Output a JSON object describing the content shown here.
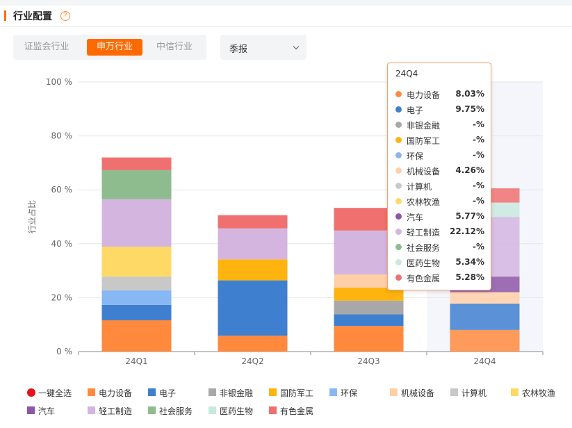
{
  "header": {
    "title": "行业配置",
    "help_icon": "question-circle-icon"
  },
  "tabs": [
    {
      "label": "证监会行业",
      "active": false
    },
    {
      "label": "申万行业",
      "active": true
    },
    {
      "label": "中信行业",
      "active": false
    }
  ],
  "period_select": {
    "value": "季报"
  },
  "colors": {
    "accent": "#ff6a00"
  },
  "chart_data": {
    "type": "bar",
    "stacked": true,
    "ylabel": "行业占比",
    "ylim": [
      0,
      100
    ],
    "yticks": [
      "0 %",
      "20 %",
      "40 %",
      "60 %",
      "80 %",
      "100 %"
    ],
    "categories": [
      "24Q1",
      "24Q2",
      "24Q3",
      "24Q4"
    ],
    "highlighted_category": "24Q4",
    "series": [
      {
        "name": "电力设备",
        "color": "#ff8a3d",
        "values": [
          11.6,
          5.9,
          9.5,
          8.03
        ]
      },
      {
        "name": "电子",
        "color": "#3f7fd0",
        "values": [
          5.7,
          20.5,
          4.3,
          9.75
        ]
      },
      {
        "name": "非银金融",
        "color": "#a8a8a8",
        "values": [
          0,
          0,
          5.1,
          0
        ]
      },
      {
        "name": "国防军工",
        "color": "#ffb30f",
        "values": [
          0,
          7.8,
          4.8,
          0
        ]
      },
      {
        "name": "环保",
        "color": "#88b8f4",
        "values": [
          5.4,
          0,
          0,
          0
        ]
      },
      {
        "name": "机械设备",
        "color": "#ffcfa8",
        "values": [
          0,
          0,
          4.9,
          4.26
        ]
      },
      {
        "name": "计算机",
        "color": "#c8c8c8",
        "values": [
          5.1,
          0,
          0,
          0
        ]
      },
      {
        "name": "农林牧渔",
        "color": "#ffd966",
        "values": [
          11.1,
          0,
          0,
          0
        ]
      },
      {
        "name": "汽车",
        "color": "#8e56a8",
        "values": [
          0,
          0,
          0,
          5.77
        ]
      },
      {
        "name": "轻工制造",
        "color": "#d3b5e0",
        "values": [
          17.6,
          11.5,
          16.3,
          22.12
        ]
      },
      {
        "name": "社会服务",
        "color": "#8fbc8f",
        "values": [
          10.8,
          0,
          0,
          0
        ]
      },
      {
        "name": "医药生物",
        "color": "#c9e8df",
        "values": [
          0,
          0,
          0,
          5.34
        ]
      },
      {
        "name": "有色金属",
        "color": "#f07070",
        "values": [
          4.7,
          4.9,
          8.4,
          5.28
        ]
      }
    ],
    "tooltip": {
      "title": "24Q4",
      "rows": [
        {
          "name": "电力设备",
          "value": "8.03%"
        },
        {
          "name": "电子",
          "value": "9.75%"
        },
        {
          "name": "非银金融",
          "value": "-%"
        },
        {
          "name": "国防军工",
          "value": "-%"
        },
        {
          "name": "环保",
          "value": "-%"
        },
        {
          "name": "机械设备",
          "value": "4.26%"
        },
        {
          "name": "计算机",
          "value": "-%"
        },
        {
          "name": "农林牧渔",
          "value": "-%"
        },
        {
          "name": "汽车",
          "value": "5.77%"
        },
        {
          "name": "轻工制造",
          "value": "22.12%"
        },
        {
          "name": "社会服务",
          "value": "-%"
        },
        {
          "name": "医药生物",
          "value": "5.34%"
        },
        {
          "name": "有色金属",
          "value": "5.28%"
        }
      ]
    },
    "legend": {
      "select_all_label": "一键全选",
      "select_all_color": "#e8111b"
    }
  }
}
